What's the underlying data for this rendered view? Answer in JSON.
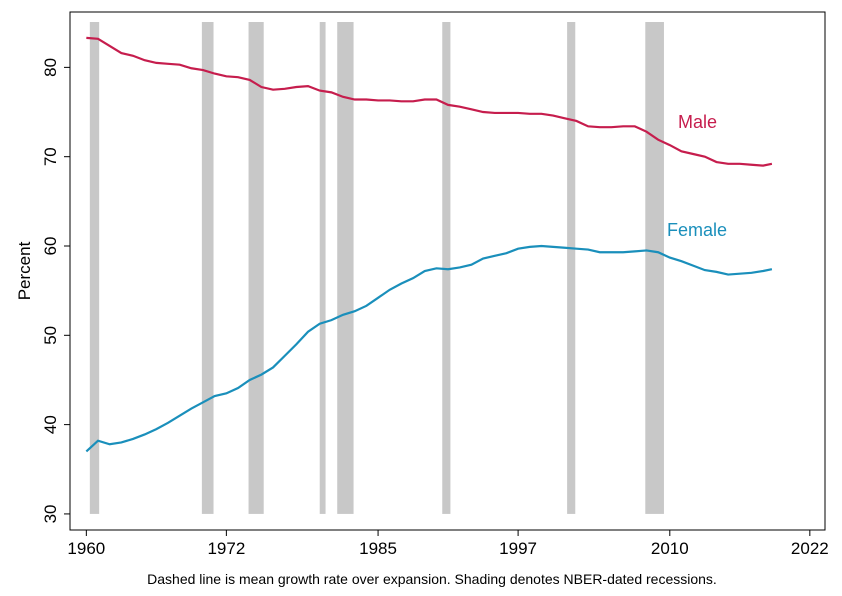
{
  "chart_data": {
    "type": "line",
    "y_label": "Percent",
    "note": "Dashed line is mean growth rate over expansion. Shading denotes NBER-dated recessions.",
    "x": [
      1960,
      1961,
      1962,
      1963,
      1964,
      1965,
      1966,
      1967,
      1968,
      1969,
      1970,
      1971,
      1972,
      1973,
      1974,
      1975,
      1976,
      1977,
      1978,
      1979,
      1980,
      1981,
      1982,
      1983,
      1984,
      1985,
      1986,
      1987,
      1988,
      1989,
      1990,
      1991,
      1992,
      1993,
      1994,
      1995,
      1996,
      1997,
      1998,
      1999,
      2000,
      2001,
      2002,
      2003,
      2004,
      2005,
      2006,
      2007,
      2008,
      2009,
      2010,
      2011,
      2012,
      2013,
      2014,
      2015,
      2016,
      2017,
      2018,
      2018.75
    ],
    "series": [
      {
        "name": "Male",
        "color": "#c61d4d",
        "values": [
          83.3,
          83.2,
          82.4,
          81.6,
          81.3,
          80.8,
          80.5,
          80.4,
          80.3,
          79.9,
          79.7,
          79.3,
          79.0,
          78.9,
          78.6,
          77.8,
          77.5,
          77.6,
          77.8,
          77.9,
          77.4,
          77.2,
          76.7,
          76.4,
          76.4,
          76.3,
          76.3,
          76.2,
          76.2,
          76.4,
          76.4,
          75.8,
          75.6,
          75.3,
          75.0,
          74.9,
          74.9,
          74.9,
          74.8,
          74.8,
          74.6,
          74.3,
          74.0,
          73.4,
          73.3,
          73.3,
          73.4,
          73.4,
          72.8,
          71.9,
          71.3,
          70.6,
          70.3,
          70.0,
          69.4,
          69.2,
          69.2,
          69.1,
          69.0,
          69.2
        ]
      },
      {
        "name": "Female",
        "color": "#1a8fbb",
        "values": [
          37.0,
          38.2,
          37.8,
          38.0,
          38.4,
          38.9,
          39.5,
          40.2,
          41.0,
          41.8,
          42.5,
          43.2,
          43.5,
          44.1,
          45.0,
          45.6,
          46.4,
          47.7,
          49.0,
          50.4,
          51.3,
          51.7,
          52.3,
          52.7,
          53.3,
          54.2,
          55.1,
          55.8,
          56.4,
          57.2,
          57.5,
          57.4,
          57.6,
          57.9,
          58.6,
          58.9,
          59.2,
          59.7,
          59.9,
          60.0,
          59.9,
          59.8,
          59.7,
          59.6,
          59.3,
          59.3,
          59.3,
          59.4,
          59.5,
          59.3,
          58.7,
          58.3,
          57.8,
          57.3,
          57.1,
          56.8,
          56.9,
          57.0,
          57.2,
          57.4
        ]
      }
    ],
    "recessions": [
      [
        1960.3,
        1961.1
      ],
      [
        1969.9,
        1970.9
      ],
      [
        1973.9,
        1975.2
      ],
      [
        1980.0,
        1980.5
      ],
      [
        1981.5,
        1982.9
      ],
      [
        1990.5,
        1991.2
      ],
      [
        2001.2,
        2001.9
      ],
      [
        2007.9,
        2009.5
      ]
    ],
    "recession_color": "#c8c8c8",
    "xlim": [
      1958.6,
      2023.3
    ],
    "xticks": [
      1960,
      1972,
      1985,
      1997,
      2010,
      2022
    ],
    "ylim": [
      28.2,
      86.2
    ],
    "yticks": [
      30,
      40,
      50,
      60,
      70,
      80
    ],
    "grid": false
  }
}
